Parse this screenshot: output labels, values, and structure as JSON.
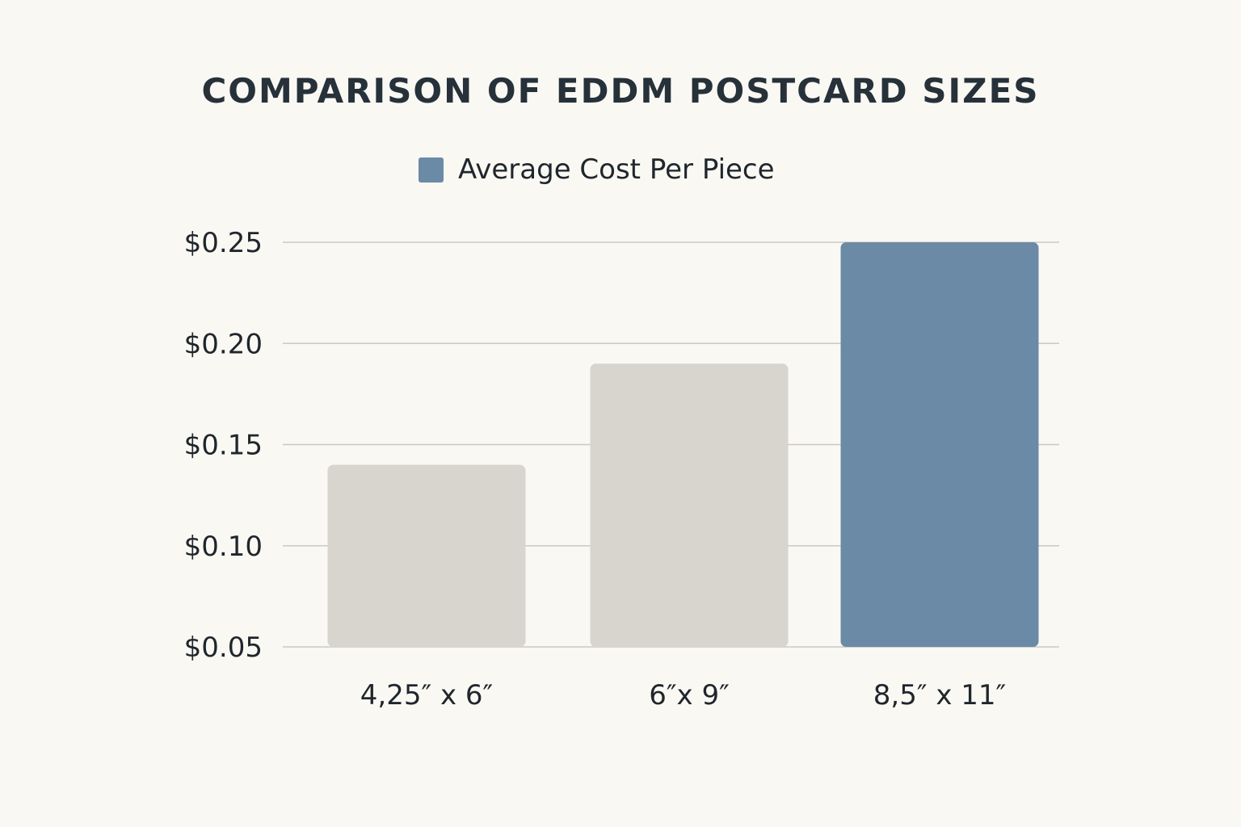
{
  "chart_data": {
    "type": "bar",
    "title": "COMPARISON OF EDDM POSTCARD SIZES",
    "legend": [
      {
        "name": "Average Cost Per Piece",
        "color": "#6b8aa6"
      }
    ],
    "categories": [
      "4,25″ x 6″",
      "6″x 9″",
      "8,5″ x 11″"
    ],
    "series": [
      {
        "name": "Average Cost Per Piece",
        "values": [
          0.14,
          0.19,
          0.25
        ]
      }
    ],
    "bar_colors": [
      "#d8d5cf",
      "#d8d5cf",
      "#6b8aa6"
    ],
    "ylim": [
      0.05,
      0.25
    ],
    "yticks": [
      {
        "value": 0.25,
        "label": "$0.25"
      },
      {
        "value": 0.2,
        "label": "$0.20"
      },
      {
        "value": 0.15,
        "label": "$0.15"
      },
      {
        "value": 0.1,
        "label": "$0.10"
      },
      {
        "value": 0.05,
        "label": "$0.05"
      }
    ],
    "grid": true,
    "xlabel": "",
    "ylabel": ""
  }
}
